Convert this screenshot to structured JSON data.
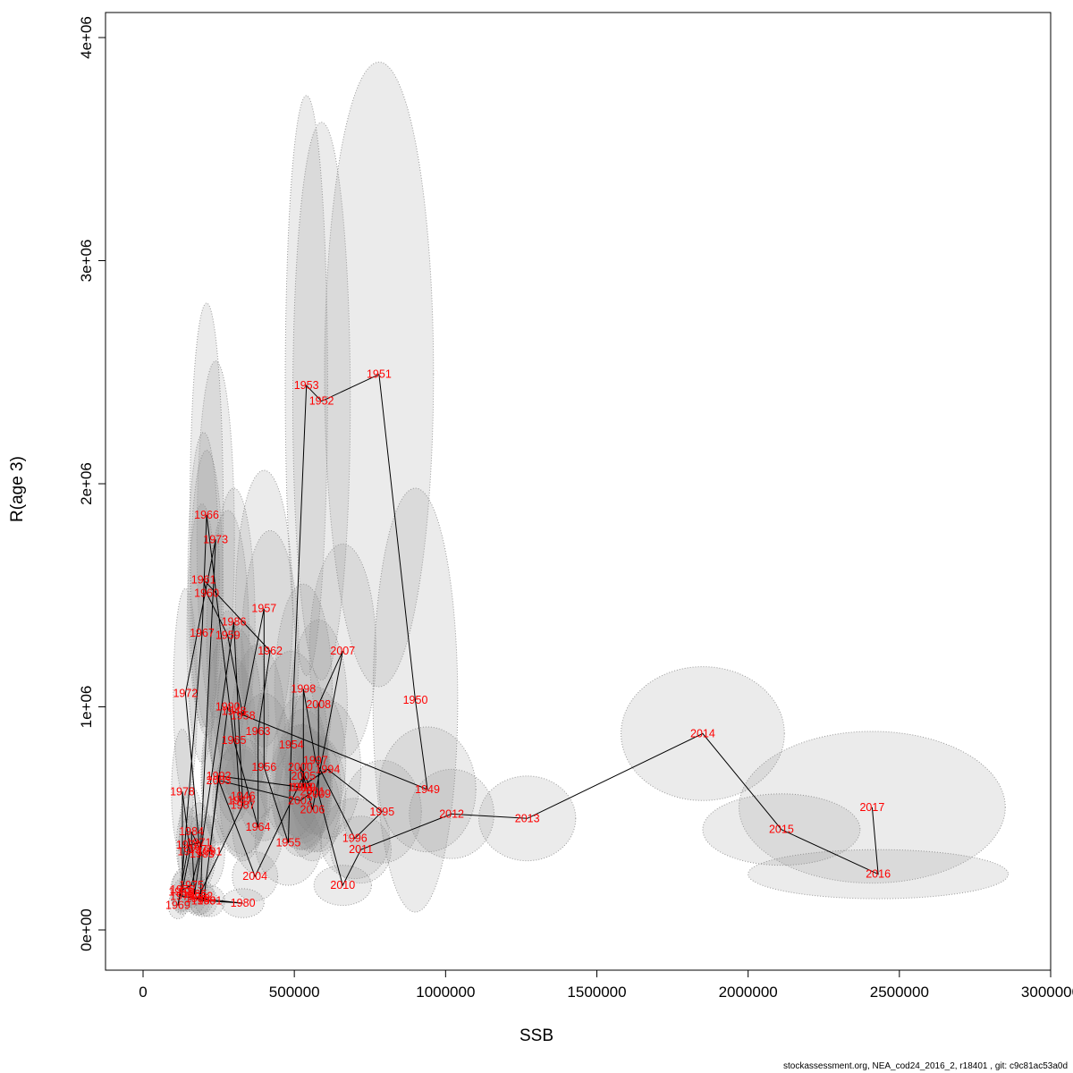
{
  "footer": {
    "text": "stockassessment.org, NEA_cod24_2016_2, r18401 , git: c9c81ac53a0d"
  },
  "chart_data": {
    "type": "scatter",
    "title": "",
    "xlabel": "SSB",
    "ylabel": "R(age 3)",
    "xlim": [
      0,
      3000000
    ],
    "ylim": [
      0,
      4000000
    ],
    "grid": false,
    "legend": "none",
    "x_ticks": [
      0,
      500000,
      1000000,
      1500000,
      2000000,
      2500000,
      3000000
    ],
    "x_tick_labels": [
      "0",
      "500000",
      "1000000",
      "1500000",
      "2000000",
      "2500000",
      "3000000"
    ],
    "y_ticks": [
      0,
      1000000,
      2000000,
      3000000,
      4000000
    ],
    "y_tick_labels": [
      "0e+00",
      "1e+06",
      "2e+06",
      "3e+06",
      "4e+06"
    ],
    "colors": {
      "label": "#FF0000",
      "path_line": "#000000",
      "ellipse_fill": "#808080",
      "ellipse_opacity": 0.16,
      "ellipse_stroke": "#999999",
      "axis": "#000000"
    },
    "point_format": [
      "year",
      "ssb",
      "recruitment",
      "ellipse_sx",
      "ellipse_sy"
    ],
    "points": [
      [
        "1946",
        330000,
        600000,
        90000,
        260000
      ],
      [
        "1947",
        320000,
        580000,
        90000,
        250000
      ],
      [
        "1948",
        300000,
        980000,
        90000,
        380000
      ],
      [
        "1949",
        940000,
        630000,
        160000,
        280000
      ],
      [
        "1950",
        900000,
        1030000,
        140000,
        950000
      ],
      [
        "1951",
        780000,
        2490000,
        180000,
        1400000
      ],
      [
        "1952",
        590000,
        2370000,
        95000,
        1250000
      ],
      [
        "1953",
        540000,
        2440000,
        70000,
        1300000
      ],
      [
        "1954",
        490000,
        830000,
        120000,
        420000
      ],
      [
        "1955",
        480000,
        390000,
        110000,
        190000
      ],
      [
        "1956",
        400000,
        730000,
        100000,
        330000
      ],
      [
        "1957",
        400000,
        1440000,
        95000,
        620000
      ],
      [
        "1958",
        330000,
        960000,
        85000,
        420000
      ],
      [
        "1959",
        280000,
        1320000,
        70000,
        560000
      ],
      [
        "1960",
        210000,
        1510000,
        55000,
        640000
      ],
      [
        "1961",
        200000,
        1570000,
        52000,
        660000
      ],
      [
        "1962",
        420000,
        1250000,
        95000,
        540000
      ],
      [
        "1963",
        380000,
        890000,
        90000,
        390000
      ],
      [
        "1964",
        380000,
        460000,
        85000,
        210000
      ],
      [
        "1965",
        300000,
        850000,
        75000,
        370000
      ],
      [
        "1966",
        210000,
        1860000,
        55000,
        950000
      ],
      [
        "1967",
        195000,
        1330000,
        50000,
        580000
      ],
      [
        "1968",
        125000,
        170000,
        35000,
        90000
      ],
      [
        "1969",
        115000,
        110000,
        32000,
        60000
      ],
      [
        "1970",
        150000,
        380000,
        40000,
        170000
      ],
      [
        "1971",
        185000,
        390000,
        45000,
        180000
      ],
      [
        "1972",
        140000,
        1060000,
        40000,
        470000
      ],
      [
        "1973",
        240000,
        1750000,
        62000,
        800000
      ],
      [
        "1974",
        190000,
        360000,
        45000,
        160000
      ],
      [
        "1975",
        160000,
        200000,
        40000,
        100000
      ],
      [
        "1976",
        130000,
        180000,
        35000,
        95000
      ],
      [
        "1977",
        155000,
        350000,
        40000,
        160000
      ],
      [
        "1978",
        130000,
        620000,
        36000,
        280000
      ],
      [
        "1979",
        130000,
        150000,
        34000,
        80000
      ],
      [
        "1980",
        330000,
        120000,
        70000,
        65000
      ],
      [
        "1981",
        220000,
        130000,
        50000,
        70000
      ],
      [
        "1982",
        190000,
        150000,
        45000,
        80000
      ],
      [
        "1983",
        195000,
        340000,
        45000,
        150000
      ],
      [
        "1984",
        160000,
        440000,
        40000,
        200000
      ],
      [
        "1985",
        170000,
        160000,
        40000,
        85000
      ],
      [
        "1986",
        300000,
        1380000,
        70000,
        600000
      ],
      [
        "1987",
        330000,
        560000,
        75000,
        250000
      ],
      [
        "1988",
        180000,
        140000,
        42000,
        75000
      ],
      [
        "1989",
        200000,
        130000,
        45000,
        70000
      ],
      [
        "1990",
        280000,
        1000000,
        65000,
        430000
      ],
      [
        "1991",
        220000,
        350000,
        50000,
        160000
      ],
      [
        "1992",
        250000,
        690000,
        58000,
        300000
      ],
      [
        "1993",
        520000,
        640000,
        100000,
        280000
      ],
      [
        "1994",
        610000,
        720000,
        110000,
        310000
      ],
      [
        "1995",
        790000,
        530000,
        130000,
        230000
      ],
      [
        "1996",
        700000,
        410000,
        115000,
        180000
      ],
      [
        "1997",
        570000,
        760000,
        100000,
        330000
      ],
      [
        "1998",
        530000,
        1080000,
        95000,
        470000
      ],
      [
        "1999",
        530000,
        640000,
        95000,
        280000
      ],
      [
        "2000",
        520000,
        730000,
        92000,
        320000
      ],
      [
        "2001",
        560000,
        620000,
        95000,
        270000
      ],
      [
        "2002",
        520000,
        580000,
        90000,
        250000
      ],
      [
        "2003",
        250000,
        670000,
        55000,
        290000
      ],
      [
        "2004",
        370000,
        240000,
        75000,
        110000
      ],
      [
        "2005",
        530000,
        690000,
        90000,
        300000
      ],
      [
        "2006",
        560000,
        540000,
        92000,
        230000
      ],
      [
        "2007",
        660000,
        1250000,
        110000,
        480000
      ],
      [
        "2008",
        580000,
        1010000,
        95000,
        380000
      ],
      [
        "2009",
        580000,
        610000,
        90000,
        260000
      ],
      [
        "2010",
        660000,
        200000,
        95000,
        90000
      ],
      [
        "2011",
        720000,
        360000,
        100000,
        150000
      ],
      [
        "2012",
        1020000,
        520000,
        140000,
        200000
      ],
      [
        "2013",
        1270000,
        500000,
        160000,
        190000
      ],
      [
        "2014",
        1850000,
        880000,
        270000,
        300000
      ],
      [
        "2015",
        2110000,
        450000,
        260000,
        160000
      ],
      [
        "2016",
        2430000,
        250000,
        430000,
        110000
      ],
      [
        "2017",
        2410000,
        550000,
        440000,
        340000
      ]
    ]
  }
}
